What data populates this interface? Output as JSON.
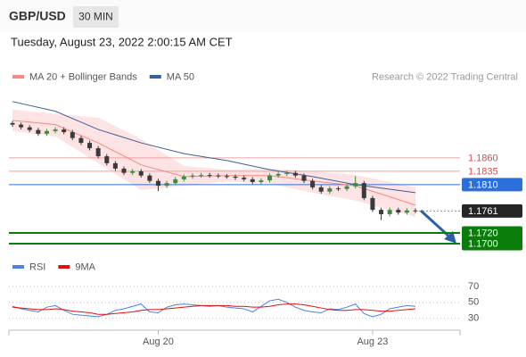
{
  "header": {
    "symbol": "GBP/USD",
    "interval": "30 MIN",
    "timestamp": "Tuesday, August 23, 2022 2:00:15 AM CET"
  },
  "chart_data": [
    {
      "type": "candlestick",
      "source": "Research © 2022 Trading Central",
      "categories": [
        null,
        null,
        null,
        null,
        null,
        null,
        null,
        null,
        null,
        null,
        null,
        null,
        null,
        null,
        null,
        null,
        null,
        "Aug 20",
        null,
        null,
        null,
        null,
        null,
        null,
        null,
        null,
        null,
        null,
        null,
        null,
        null,
        null,
        null,
        null,
        null,
        null,
        null,
        null,
        null,
        null,
        null,
        null,
        "Aug 23",
        null,
        null,
        null,
        null,
        null
      ],
      "open": [
        1.1925,
        1.1922,
        1.1917,
        1.1912,
        1.1905,
        1.191,
        1.1913,
        1.1908,
        1.1897,
        1.1888,
        1.1878,
        1.1863,
        1.185,
        1.184,
        1.1832,
        1.1835,
        1.1827,
        1.1817,
        1.1808,
        1.1813,
        1.182,
        1.1825,
        1.1827,
        1.1828,
        1.1827,
        1.1826,
        1.1825,
        1.1823,
        1.182,
        1.1815,
        1.1818,
        1.1827,
        1.183,
        1.1832,
        1.1827,
        1.1817,
        1.1805,
        1.1797,
        1.1803,
        1.1802,
        1.1807,
        1.1813,
        1.1785,
        1.1763,
        1.1755,
        1.1763,
        1.1758,
        1.1762
      ],
      "high": [
        1.1929,
        1.1926,
        1.1921,
        1.1916,
        1.1914,
        1.1917,
        1.1917,
        1.1912,
        1.1901,
        1.1892,
        1.1882,
        1.1867,
        1.1854,
        1.1844,
        1.1839,
        1.1839,
        1.1831,
        1.1821,
        1.1817,
        1.1824,
        1.1829,
        1.1831,
        1.1832,
        1.1832,
        1.1831,
        1.183,
        1.1829,
        1.1827,
        1.1824,
        1.1822,
        1.1831,
        1.1834,
        1.1836,
        1.1836,
        1.1831,
        1.1821,
        1.1809,
        1.1807,
        1.1807,
        1.1811,
        1.1826,
        1.1817,
        1.1789,
        1.1767,
        1.1767,
        1.1767,
        1.1766,
        1.1766
      ],
      "low": [
        1.1918,
        1.1913,
        1.1908,
        1.1901,
        1.1901,
        1.1906,
        1.1904,
        1.1893,
        1.1884,
        1.1874,
        1.1859,
        1.1846,
        1.1836,
        1.1828,
        1.1828,
        1.1823,
        1.1813,
        1.1798,
        1.1804,
        1.1809,
        1.1816,
        1.1821,
        1.1823,
        1.1823,
        1.1822,
        1.1821,
        1.1819,
        1.1816,
        1.1811,
        1.1811,
        1.1814,
        1.1823,
        1.1826,
        1.1823,
        1.1813,
        1.1801,
        1.1793,
        1.1793,
        1.1798,
        1.1798,
        1.1803,
        1.1781,
        1.1759,
        1.1744,
        1.1751,
        1.1754,
        1.1754,
        1.1757
      ],
      "close": [
        1.1922,
        1.1917,
        1.1912,
        1.1905,
        1.191,
        1.1913,
        1.1908,
        1.1897,
        1.1888,
        1.1878,
        1.1863,
        1.185,
        1.184,
        1.1832,
        1.1835,
        1.1827,
        1.1817,
        1.1808,
        1.1813,
        1.182,
        1.1825,
        1.1827,
        1.1828,
        1.1827,
        1.1826,
        1.1825,
        1.1823,
        1.182,
        1.1815,
        1.1818,
        1.1827,
        1.183,
        1.1832,
        1.1827,
        1.1817,
        1.1805,
        1.1797,
        1.1803,
        1.1802,
        1.1807,
        1.1813,
        1.1785,
        1.1763,
        1.1755,
        1.1763,
        1.1758,
        1.1762,
        1.1761
      ],
      "up_color": "#3d8a3d",
      "down_color": "#3a3a3a",
      "ylim": [
        1.168,
        1.1988
      ],
      "series": [
        {
          "name": "MA 20 + Bollinger Bands",
          "color": "#f28b82",
          "band_color": "#fde3e3",
          "x": [
            0,
            5,
            10,
            15,
            20,
            25,
            30,
            35,
            40,
            47
          ],
          "values": [
            1.193,
            1.1922,
            1.1888,
            1.1847,
            1.1825,
            1.1827,
            1.1827,
            1.1817,
            1.1808,
            1.1772
          ],
          "upper": [
            1.195,
            1.1942,
            1.1935,
            1.1895,
            1.1845,
            1.1838,
            1.184,
            1.1835,
            1.1828,
            1.1805
          ],
          "lower": [
            1.191,
            1.19,
            1.185,
            1.18,
            1.1808,
            1.1816,
            1.1812,
            1.1795,
            1.178,
            1.175
          ]
        },
        {
          "name": "MA 50",
          "color": "#3b5f9a",
          "x": [
            0,
            5,
            10,
            15,
            20,
            25,
            30,
            35,
            40,
            47
          ],
          "values": [
            1.1965,
            1.1947,
            1.1913,
            1.1888,
            1.1868,
            1.1855,
            1.1838,
            1.1825,
            1.181,
            1.1795
          ]
        }
      ],
      "levels": [
        {
          "value": 1.186,
          "label": "1.1860",
          "color": "#e04848",
          "boxed": false
        },
        {
          "value": 1.1835,
          "label": "1.1835",
          "color": "#e04848",
          "boxed": false
        },
        {
          "value": 1.181,
          "label": "1.1810",
          "color": "#2a6fdb",
          "boxed": true
        },
        {
          "value": 1.1761,
          "label": "1.1761",
          "color": "#262626",
          "boxed": true,
          "dotted": true
        },
        {
          "value": 1.172,
          "label": "1.1720",
          "color": "#0b7d0b",
          "boxed": true
        },
        {
          "value": 1.17,
          "label": "1.1700",
          "color": "#0b7d0b",
          "boxed": true
        }
      ]
    },
    {
      "type": "line",
      "ylim": [
        15,
        88
      ],
      "yticks": [
        30,
        50,
        70
      ],
      "grid": true,
      "series": [
        {
          "name": "RSI",
          "color": "#4f7fdf",
          "values": [
            45,
            42,
            40,
            38,
            44,
            46,
            40,
            35,
            34,
            33,
            32,
            35,
            40,
            42,
            45,
            48,
            38,
            37,
            44,
            47,
            48,
            47,
            46,
            45,
            46,
            44,
            43,
            42,
            38,
            45,
            52,
            54,
            50,
            44,
            40,
            38,
            37,
            42,
            41,
            44,
            48,
            36,
            32,
            35,
            42,
            44,
            46,
            45
          ]
        },
        {
          "name": "9MA",
          "color": "#e01010",
          "values": [
            44,
            43,
            42,
            41,
            41,
            42,
            41,
            39,
            38,
            37,
            35,
            35,
            36,
            37,
            38,
            40,
            41,
            41,
            42,
            43,
            44,
            45,
            46,
            46,
            46,
            46,
            45,
            45,
            44,
            44,
            45,
            47,
            48,
            48,
            47,
            45,
            43,
            41,
            40,
            40,
            41,
            41,
            40,
            39,
            39,
            40,
            41,
            42
          ]
        }
      ]
    }
  ]
}
